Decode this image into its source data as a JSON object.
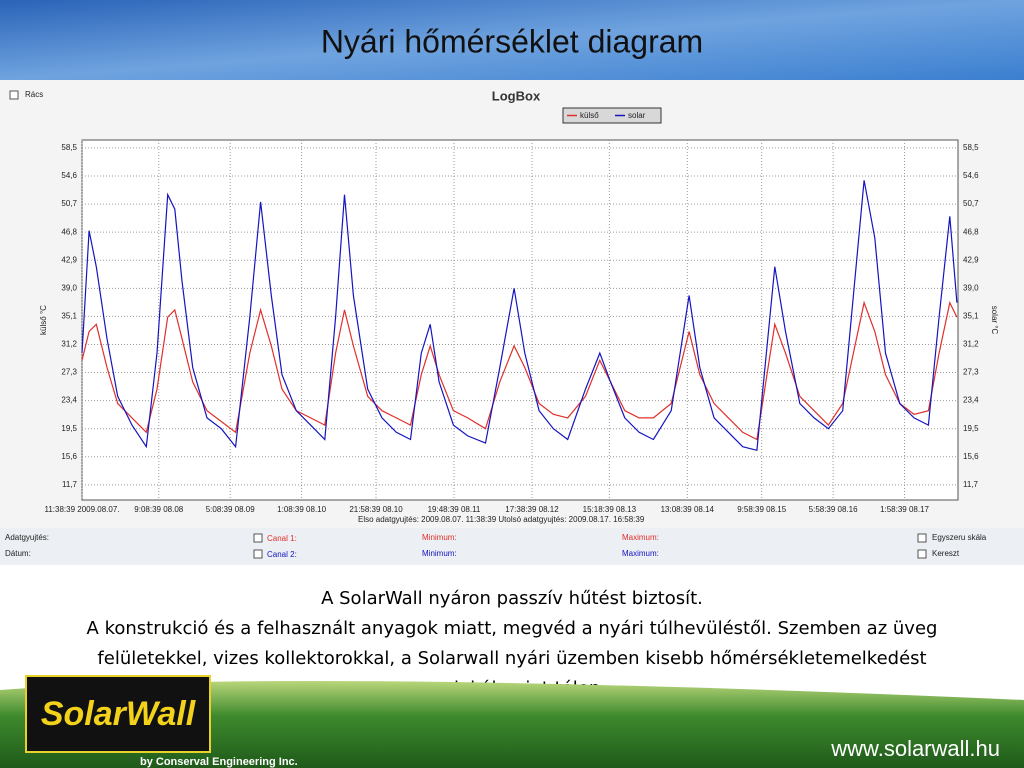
{
  "slide": {
    "title": "Nyári hőmérséklet diagram",
    "body": [
      "A SolarWall nyáron passzív hűtést biztosít.",
      "A konstrukció és a felhasznált anyagok miatt, megvéd a nyári túlhevüléstől. Szemben az üveg",
      "felületekkel, vizes kollektorokkal, a Solarwall nyári üzemben kisebb hőmérsékletemelkedést",
      "produkál, mint télen."
    ],
    "logo": "SolarWall",
    "company": "by Conserval Engineering Inc.",
    "url": "www.solarwall.hu"
  },
  "app": {
    "grid_option": "Rács",
    "info": "Elso adatgyujtés: 2009.08.07. 11:38:39   Utolsó adatgyujtés: 2009.08.17. 16:58:39",
    "panel": {
      "row1": "Adatgyujtés:",
      "row2": "Dátum:",
      "canal1": "Canal 1:",
      "canal2": "Canal 2:",
      "min1": "Minimum:",
      "min2": "Minimum:",
      "max1": "Maximum:",
      "max2": "Maximum:",
      "scale": "Egyszeru skála",
      "cross": "Kereszt"
    }
  },
  "chart_data": {
    "type": "line",
    "title": "LogBox",
    "ylabel": "külső °C",
    "y2label": "solar °C",
    "grid": true,
    "x": [
      0,
      2,
      4,
      7,
      10,
      14,
      18,
      21,
      24,
      26,
      28,
      31,
      35,
      39,
      43,
      47,
      50,
      53,
      56,
      60,
      64,
      68,
      71,
      73.5,
      76,
      80,
      84,
      88,
      92,
      95,
      97.5,
      100,
      104,
      108,
      113,
      117,
      121,
      124,
      128,
      132,
      136,
      141,
      145,
      148,
      152,
      156,
      160,
      165,
      170,
      173,
      177,
      181,
      185,
      189,
      194,
      197,
      201,
      205,
      209,
      213,
      219,
      222,
      225,
      229,
      233,
      237,
      240,
      243,
      245
    ],
    "series": [
      {
        "name": "külső",
        "color": "#e0302a",
        "values": [
          29,
          33,
          34,
          28,
          23,
          21,
          19,
          25,
          35,
          36,
          32,
          26,
          22,
          20.5,
          19,
          30,
          36,
          31,
          25,
          22,
          21,
          20,
          30,
          36,
          31,
          24,
          22,
          21,
          20,
          27,
          31,
          27,
          22,
          21,
          19.5,
          26,
          31,
          28,
          23,
          21.5,
          21,
          24,
          29,
          26,
          22,
          21,
          21,
          23,
          33,
          27,
          23,
          21,
          19,
          18,
          34,
          30,
          24,
          22,
          20,
          23,
          37,
          33,
          27,
          23,
          21.5,
          22,
          30,
          37,
          35
        ]
      },
      {
        "name": "solar",
        "color": "#1414c0",
        "values": [
          30,
          47,
          42,
          32,
          24,
          20,
          17,
          30,
          52,
          50,
          40,
          28,
          21,
          19.5,
          17,
          35,
          51,
          38,
          27,
          22,
          20,
          18,
          35,
          52,
          38,
          25,
          21,
          19,
          18,
          30,
          34,
          26,
          20,
          18.5,
          17.5,
          28,
          39,
          30,
          22,
          19.5,
          18,
          25,
          30,
          26,
          21,
          19,
          18,
          22,
          38,
          28,
          21,
          19,
          17,
          16.5,
          42,
          33,
          23,
          21,
          19.5,
          22,
          54,
          46,
          30,
          23,
          21,
          20,
          35,
          49,
          37
        ]
      }
    ],
    "xlim": [
      0,
      245.3
    ],
    "xticks": [
      {
        "value": 0,
        "label": "11:38:39 2009.08.07."
      },
      {
        "value": 21.5,
        "label": "9:08:39 08.08"
      },
      {
        "value": 41.5,
        "label": "5:08:39 08.09"
      },
      {
        "value": 61.5,
        "label": "1:08:39 08.10"
      },
      {
        "value": 82.33,
        "label": "21:58:39 08.10"
      },
      {
        "value": 104.17,
        "label": "19:48:39 08.11"
      },
      {
        "value": 126,
        "label": "17:38:39 08.12"
      },
      {
        "value": 147.67,
        "label": "15:18:39 08.13"
      },
      {
        "value": 169.5,
        "label": "13:08:39 08.14"
      },
      {
        "value": 190.33,
        "label": "9:58:39 08.15"
      },
      {
        "value": 210.33,
        "label": "5:58:39 08.16"
      },
      {
        "value": 230.33,
        "label": "1:58:39 08.17"
      }
    ],
    "ylim": [
      9.6,
      59.6
    ],
    "yticks": [
      {
        "value": 11.7,
        "label": "11,7"
      },
      {
        "value": 15.6,
        "label": "15,6"
      },
      {
        "value": 19.5,
        "label": "19,5"
      },
      {
        "value": 23.4,
        "label": "23,4"
      },
      {
        "value": 27.3,
        "label": "27,3"
      },
      {
        "value": 31.2,
        "label": "31,2"
      },
      {
        "value": 35.1,
        "label": "35,1"
      },
      {
        "value": 39,
        "label": "39,0"
      },
      {
        "value": 42.9,
        "label": "42,9"
      },
      {
        "value": 46.8,
        "label": "46,8"
      },
      {
        "value": 50.7,
        "label": "50,7"
      },
      {
        "value": 54.6,
        "label": "54,6"
      },
      {
        "value": 58.5,
        "label": "58,5"
      }
    ]
  }
}
